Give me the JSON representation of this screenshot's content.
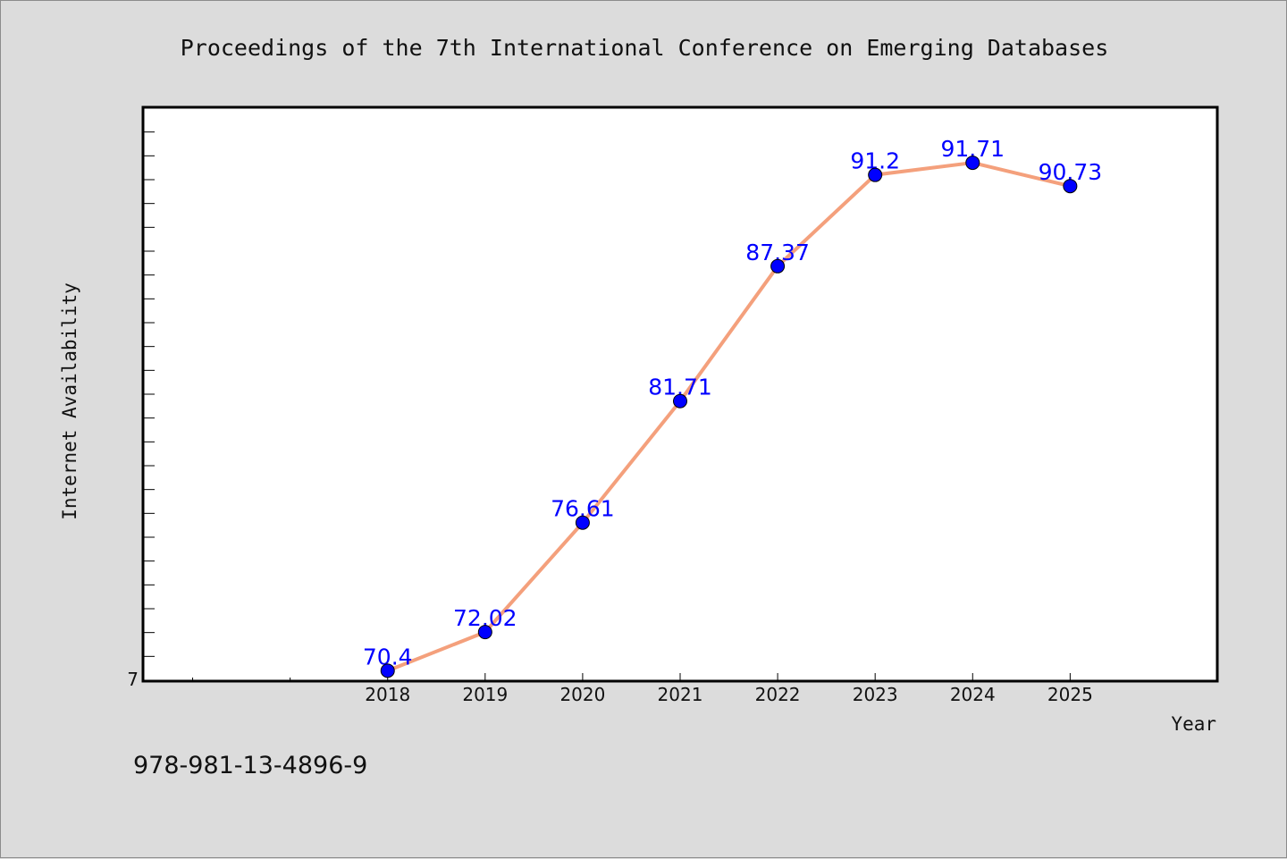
{
  "page": {
    "isbn": "978-981-13-4896-9"
  },
  "colors": {
    "background": "#dcdcdc",
    "plot_background": "#ffffff",
    "line": "#f4a07c",
    "marker": "#0000ff",
    "data_label": "#0000ff"
  },
  "chart_data": {
    "type": "line",
    "title": "Proceedings of the 7th International Conference on Emerging Databases",
    "xlabel": "Year",
    "ylabel": "Internet Availability",
    "x": [
      "2018",
      "2019",
      "2020",
      "2021",
      "2022",
      "2023",
      "2024",
      "2025"
    ],
    "series": [
      {
        "values": [
          70.4,
          72.02,
          76.61,
          81.71,
          87.37,
          91.2,
          91.71,
          90.73
        ],
        "data_labels": [
          "70.4",
          "72.02",
          "76.61",
          "81.71",
          "87.37",
          "91.2",
          "91.71",
          "90.73"
        ]
      }
    ],
    "y_tick_labels": [
      "7"
    ],
    "ylim": [
      70,
      94
    ],
    "xlim": [
      2015.5,
      2026.5
    ],
    "x_minor_ticks": [
      2016,
      2017
    ],
    "y_minor_tick_step": 1,
    "grid": false,
    "legend": "none",
    "marker": "circle"
  }
}
